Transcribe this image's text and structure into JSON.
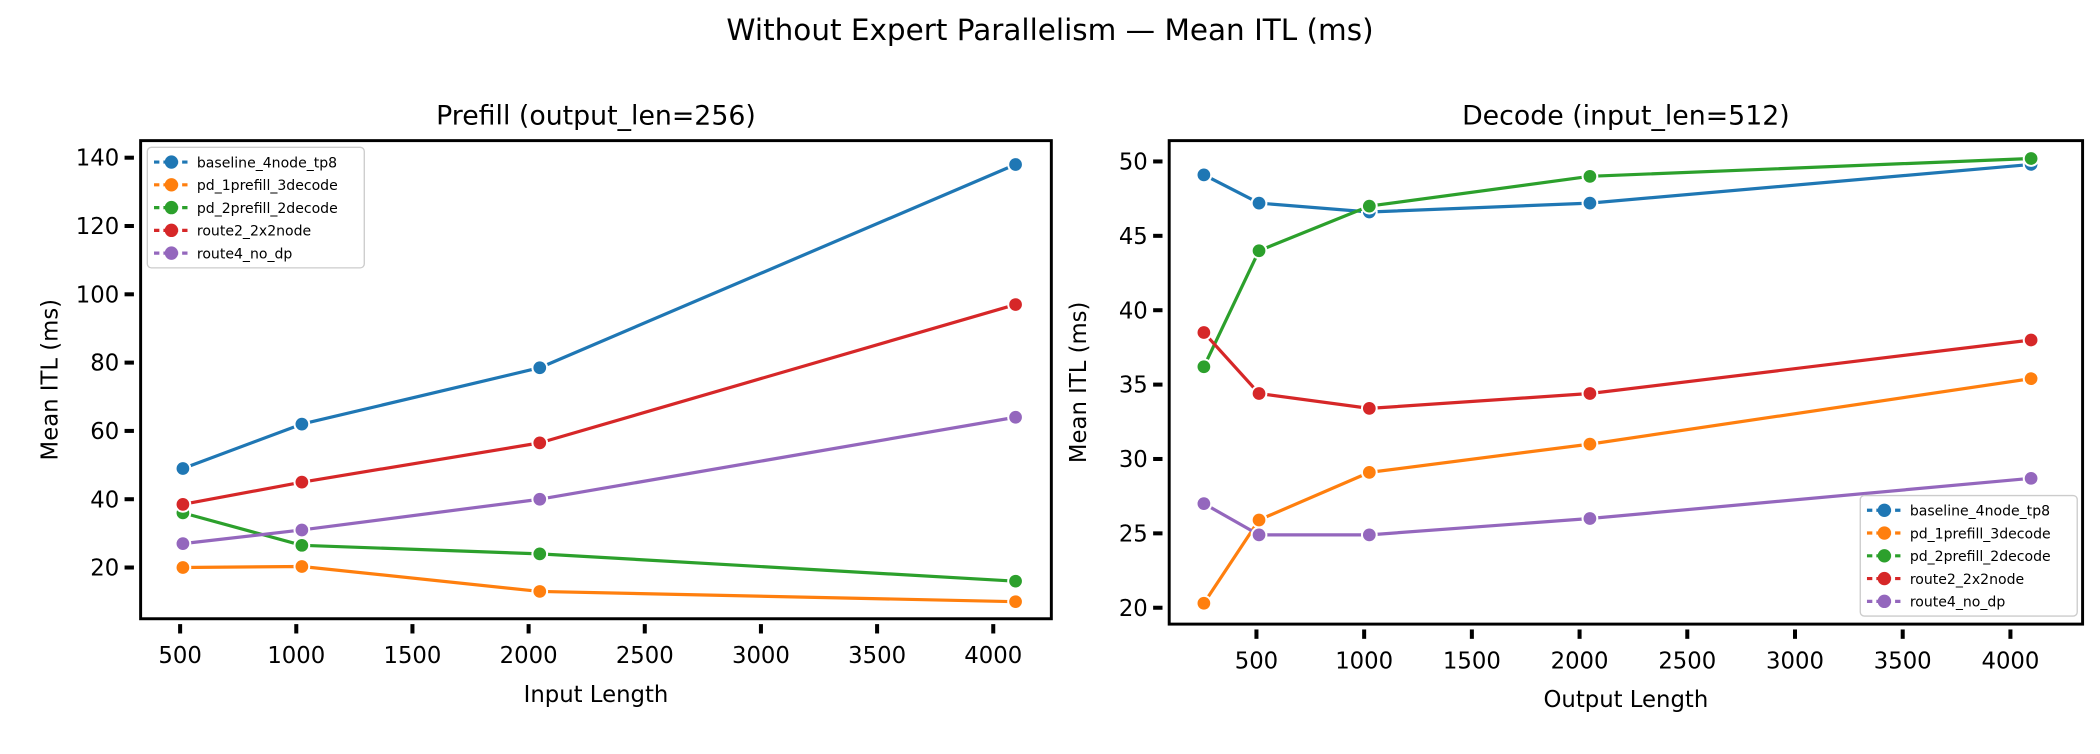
{
  "suptitle": "Without Expert Parallelism — Mean ITL (ms)",
  "colors": {
    "baseline_4node_tp8": "#1f77b4",
    "pd_1prefill_3decode": "#ff7f0e",
    "pd_2prefill_2decode": "#2ca02c",
    "route2_2x2node": "#d62728",
    "route4_no_dp": "#9467bd"
  },
  "chart_data": [
    {
      "type": "line",
      "title": "Prefill (output_len=256)",
      "xlabel": "Input Length",
      "ylabel": "Mean ITL (ms)",
      "xlim": [
        330,
        4250
      ],
      "ylim": [
        5,
        145
      ],
      "xticks": [
        500,
        1000,
        1500,
        2000,
        2500,
        3000,
        3500,
        4000
      ],
      "yticks": [
        20,
        40,
        60,
        80,
        100,
        120,
        140
      ],
      "legend": "top-left",
      "grid": false,
      "x": [
        512,
        1024,
        2048,
        4096
      ],
      "series": [
        {
          "name": "baseline_4node_tp8",
          "values": [
            49,
            62,
            78.5,
            138
          ]
        },
        {
          "name": "pd_1prefill_3decode",
          "values": [
            20,
            20.3,
            13,
            10
          ]
        },
        {
          "name": "pd_2prefill_2decode",
          "values": [
            36,
            26.5,
            24,
            16
          ]
        },
        {
          "name": "route2_2x2node",
          "values": [
            38.5,
            45,
            56.5,
            97
          ]
        },
        {
          "name": "route4_no_dp",
          "values": [
            27,
            31,
            40,
            64
          ]
        }
      ]
    },
    {
      "type": "line",
      "title": "Decode (input_len=512)",
      "xlabel": "Output Length",
      "ylabel": "Mean ITL (ms)",
      "xlim": [
        95,
        4335
      ],
      "ylim": [
        18.9,
        51.4
      ],
      "xticks": [
        500,
        1000,
        1500,
        2000,
        2500,
        3000,
        3500,
        4000
      ],
      "yticks": [
        20,
        25,
        30,
        35,
        40,
        45,
        50
      ],
      "legend": "bottom-right",
      "grid": false,
      "x": [
        256,
        512,
        1024,
        2048,
        4096
      ],
      "series": [
        {
          "name": "baseline_4node_tp8",
          "values": [
            49.1,
            47.2,
            46.6,
            47.2,
            49.8
          ]
        },
        {
          "name": "pd_1prefill_3decode",
          "values": [
            20.3,
            25.9,
            29.1,
            31,
            35.4
          ]
        },
        {
          "name": "pd_2prefill_2decode",
          "values": [
            36.2,
            44,
            47,
            49,
            50.2
          ]
        },
        {
          "name": "route2_2x2node",
          "values": [
            38.5,
            34.4,
            33.4,
            34.4,
            38
          ]
        },
        {
          "name": "route4_no_dp",
          "values": [
            27,
            24.9,
            24.9,
            26,
            28.7
          ]
        }
      ]
    }
  ]
}
